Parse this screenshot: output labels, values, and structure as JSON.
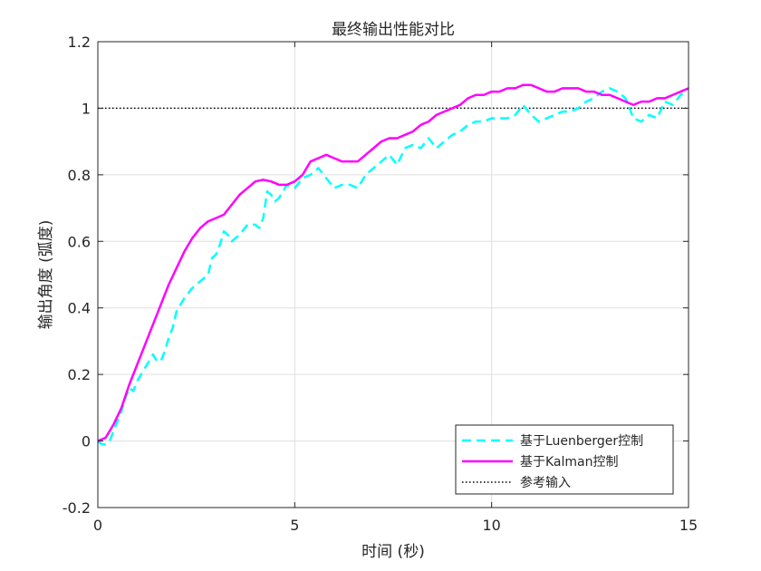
{
  "chart_data": {
    "type": "line",
    "title": "最终输出性能对比",
    "xlabel": "时间 (秒)",
    "ylabel": "输出角度 (弧度)",
    "xlim": [
      0,
      15
    ],
    "ylim": [
      -0.2,
      1.2
    ],
    "xticks": [
      0,
      5,
      10,
      15
    ],
    "yticks": [
      -0.2,
      0,
      0.2,
      0.4,
      0.6,
      0.8,
      1,
      1.2
    ],
    "xtick_labels": [
      "0",
      "5",
      "10",
      "15"
    ],
    "ytick_labels": [
      "-0.2",
      "0",
      "0.2",
      "0.4",
      "0.6",
      "0.8",
      "1",
      "1.2"
    ],
    "grid": true,
    "legend_position": "bottom-right",
    "series": [
      {
        "name": "基于Luenberger控制",
        "color": "#00ffff",
        "style": "dashed",
        "x": [
          0,
          0.1,
          0.2,
          0.3,
          0.4,
          0.5,
          0.6,
          0.7,
          0.8,
          0.9,
          1.0,
          1.1,
          1.2,
          1.3,
          1.4,
          1.5,
          1.6,
          1.7,
          1.8,
          1.9,
          2.0,
          2.1,
          2.2,
          2.4,
          2.6,
          2.8,
          2.9,
          3.0,
          3.1,
          3.2,
          3.3,
          3.4,
          3.6,
          3.8,
          4.0,
          4.1,
          4.2,
          4.3,
          4.4,
          4.5,
          4.6,
          4.8,
          5.0,
          5.2,
          5.4,
          5.6,
          5.8,
          6.0,
          6.2,
          6.4,
          6.6,
          6.8,
          7.0,
          7.2,
          7.4,
          7.6,
          7.8,
          8.0,
          8.2,
          8.4,
          8.6,
          8.8,
          9.0,
          9.2,
          9.4,
          9.6,
          9.8,
          10.0,
          10.2,
          10.4,
          10.6,
          10.8,
          11.0,
          11.2,
          11.4,
          11.6,
          11.8,
          12.0,
          12.2,
          12.4,
          12.6,
          12.8,
          13.0,
          13.2,
          13.4,
          13.6,
          13.8,
          14.0,
          14.2,
          14.4,
          14.6,
          14.8,
          15.0
        ],
        "y": [
          0,
          -0.01,
          -0.01,
          0.0,
          0.03,
          0.06,
          0.09,
          0.13,
          0.16,
          0.15,
          0.18,
          0.2,
          0.22,
          0.24,
          0.26,
          0.24,
          0.24,
          0.27,
          0.31,
          0.34,
          0.39,
          0.41,
          0.43,
          0.46,
          0.48,
          0.5,
          0.55,
          0.56,
          0.59,
          0.63,
          0.62,
          0.6,
          0.62,
          0.65,
          0.65,
          0.64,
          0.67,
          0.75,
          0.74,
          0.72,
          0.73,
          0.77,
          0.76,
          0.79,
          0.8,
          0.82,
          0.79,
          0.76,
          0.77,
          0.77,
          0.76,
          0.8,
          0.82,
          0.84,
          0.86,
          0.83,
          0.88,
          0.89,
          0.88,
          0.91,
          0.88,
          0.9,
          0.92,
          0.93,
          0.95,
          0.96,
          0.96,
          0.97,
          0.97,
          0.97,
          0.98,
          1.01,
          0.98,
          0.96,
          0.97,
          0.98,
          0.99,
          0.99,
          1.0,
          1.02,
          1.03,
          1.05,
          1.06,
          1.05,
          1.03,
          0.97,
          0.96,
          0.98,
          0.97,
          1.02,
          1.01,
          1.04,
          1.06
        ]
      },
      {
        "name": "基于Kalman控制",
        "color": "#ff00ff",
        "style": "solid",
        "x": [
          0,
          0.2,
          0.4,
          0.6,
          0.8,
          1.0,
          1.2,
          1.4,
          1.6,
          1.8,
          2.0,
          2.2,
          2.4,
          2.6,
          2.8,
          3.0,
          3.2,
          3.4,
          3.6,
          3.8,
          4.0,
          4.2,
          4.4,
          4.6,
          4.8,
          5.0,
          5.2,
          5.4,
          5.6,
          5.8,
          6.0,
          6.2,
          6.4,
          6.6,
          6.8,
          7.0,
          7.2,
          7.4,
          7.6,
          7.8,
          8.0,
          8.2,
          8.4,
          8.6,
          8.8,
          9.0,
          9.2,
          9.4,
          9.6,
          9.8,
          10.0,
          10.2,
          10.4,
          10.6,
          10.8,
          11.0,
          11.2,
          11.4,
          11.6,
          11.8,
          12.0,
          12.2,
          12.4,
          12.6,
          12.8,
          13.0,
          13.2,
          13.4,
          13.6,
          13.8,
          14.0,
          14.2,
          14.4,
          14.6,
          14.8,
          15.0
        ],
        "y": [
          0,
          0.01,
          0.05,
          0.1,
          0.17,
          0.23,
          0.29,
          0.35,
          0.41,
          0.47,
          0.52,
          0.57,
          0.61,
          0.64,
          0.66,
          0.67,
          0.68,
          0.71,
          0.74,
          0.76,
          0.78,
          0.785,
          0.78,
          0.77,
          0.77,
          0.78,
          0.8,
          0.84,
          0.85,
          0.86,
          0.85,
          0.84,
          0.84,
          0.84,
          0.86,
          0.88,
          0.9,
          0.91,
          0.91,
          0.92,
          0.93,
          0.95,
          0.96,
          0.98,
          0.99,
          1.0,
          1.01,
          1.03,
          1.04,
          1.04,
          1.05,
          1.05,
          1.06,
          1.06,
          1.07,
          1.07,
          1.06,
          1.05,
          1.05,
          1.06,
          1.06,
          1.06,
          1.05,
          1.05,
          1.04,
          1.04,
          1.03,
          1.02,
          1.01,
          1.02,
          1.02,
          1.03,
          1.03,
          1.04,
          1.05,
          1.06
        ]
      },
      {
        "name": "参考输入",
        "color": "#000000",
        "style": "dotted",
        "x": [
          0,
          15
        ],
        "y": [
          1,
          1
        ]
      }
    ]
  }
}
